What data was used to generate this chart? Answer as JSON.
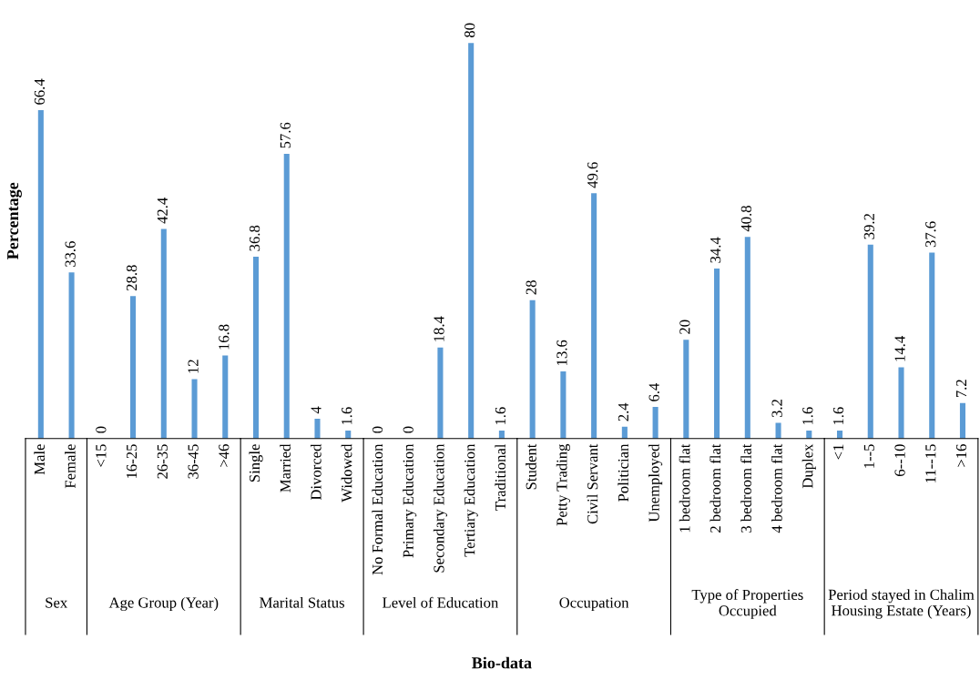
{
  "chart_data": [
    {
      "type": "bar",
      "ylabel": "Percentage",
      "xlabel": "Sex",
      "categories": [
        "Male",
        "Female"
      ],
      "values": [
        66.4,
        33.6
      ],
      "color": "#5b9bd5",
      "data_labels": true
    },
    {
      "type": "bar",
      "xlabel": "Age Group (Year)",
      "categories": [
        "<15",
        "16-25",
        "26-35",
        "36-45",
        ">46"
      ],
      "values": [
        0,
        28.8,
        42.4,
        12,
        16.8
      ],
      "color": "#5b9bd5",
      "data_labels": true
    },
    {
      "type": "bar",
      "xlabel": "Marital Status",
      "categories": [
        "Single",
        "Married",
        "Divorced",
        "Widowed"
      ],
      "values": [
        36.8,
        57.6,
        4,
        1.6
      ],
      "color": "#5b9bd5",
      "data_labels": true
    },
    {
      "type": "bar",
      "xlabel": "Level of Education",
      "categories": [
        "No Formal Education",
        "Primary Education",
        "Secondary Education",
        "Tertiary Education",
        "Traditional"
      ],
      "values": [
        0,
        0,
        18.4,
        80,
        1.6
      ],
      "color": "#5b9bd5",
      "data_labels": true
    },
    {
      "type": "bar",
      "xlabel": "Occupation",
      "categories": [
        "Student",
        "Petty Trading",
        "Civil Servant",
        "Politician",
        "Unemployed"
      ],
      "values": [
        28,
        13.6,
        49.6,
        2.4,
        6.4
      ],
      "color": "#5b9bd5",
      "data_labels": true
    },
    {
      "type": "bar",
      "xlabel": "Type of Properties\nOccupied",
      "categories": [
        "1 bedroom flat",
        "2 bedroom flat",
        "3 bedroom flat",
        "4 bedroom flat",
        "Duplex"
      ],
      "values": [
        20,
        34.4,
        40.8,
        3.2,
        1.6
      ],
      "color": "#5b9bd5",
      "data_labels": true
    },
    {
      "type": "bar",
      "xlabel": "Period stayed in Chalim\nHousing Estate (Years)",
      "categories": [
        "<1",
        "1--5",
        "6--10",
        "11--15",
        ">16"
      ],
      "values": [
        1.6,
        39.2,
        14.4,
        37.6,
        7.2
      ],
      "color": "#5b9bd5",
      "data_labels": true,
      "annotations": [
        "Bio-data"
      ]
    }
  ]
}
